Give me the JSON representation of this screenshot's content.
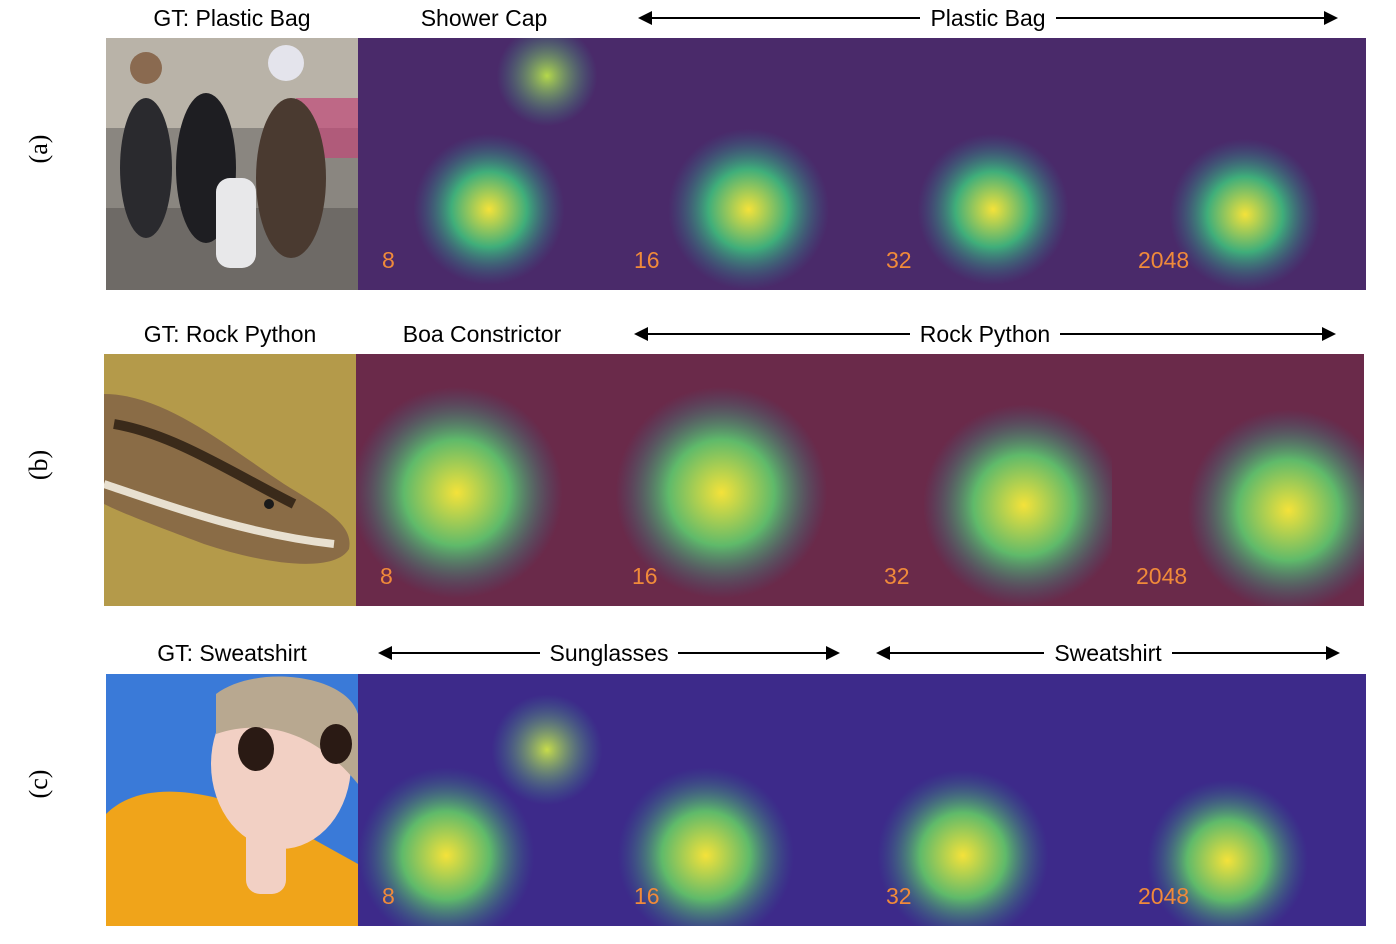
{
  "rows": [
    {
      "letter": "(a)",
      "gt": "GT: Plastic Bag",
      "single_label": "Shower Cap",
      "range_label": "Plastic Bag",
      "numbers": [
        "8",
        "16",
        "32",
        "2048"
      ]
    },
    {
      "letter": "(b)",
      "gt": "GT: Rock Python",
      "single_label": "Boa Constrictor",
      "range_label": "Rock Python",
      "numbers": [
        "8",
        "16",
        "32",
        "2048"
      ]
    },
    {
      "letter": "(c)",
      "gt": "GT: Sweatshirt",
      "range_label_1": "Sunglasses",
      "range_label_2": "Sweatshirt",
      "numbers": [
        "8",
        "16",
        "32",
        "2048"
      ]
    }
  ],
  "colors": {
    "number_text": "#f08a3a",
    "heat_low": "#3b1d5c",
    "heat_mid": "#2f9e8f",
    "heat_high": "#f4e23a"
  }
}
